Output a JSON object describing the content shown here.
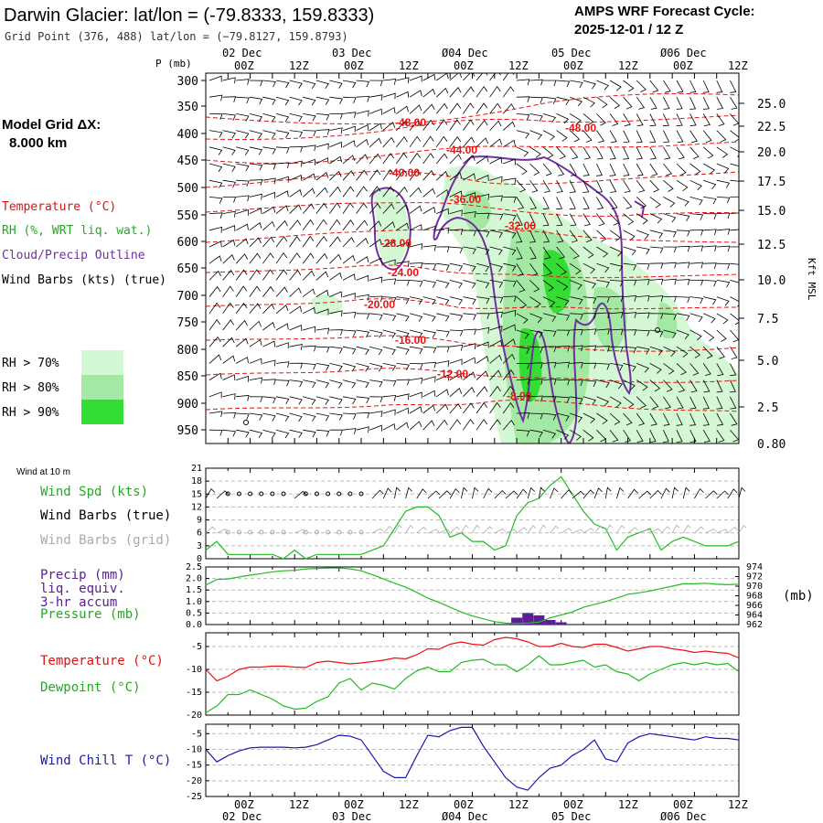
{
  "header": {
    "title": "Darwin Glacier:  lat/lon = (-79.8333, 159.8333)",
    "grid_point": "Grid Point (376, 488) lat/lon = (−79.8127, 159.8793)",
    "forecast_label": "AMPS WRF Forecast Cycle:",
    "forecast_cycle": "2025-12-01 / 12  Z"
  },
  "left_panel": {
    "model_grid_label": "Model Grid ΔX:",
    "model_grid_value": "8.000 km",
    "legend_temperature": "Temperature (°C)",
    "legend_rh": "RH (%, WRT liq. wat.)",
    "legend_cloud": "Cloud/Precip Outline",
    "legend_wind": "Wind Barbs (kts) (true)",
    "rh_levels": [
      "RH > 70%",
      "RH > 80%",
      "RH > 90%"
    ]
  },
  "colors": {
    "temperature": "#ee1111",
    "rh70": "#d4f7d4",
    "rh80": "#a3e8a3",
    "rh90": "#33dd33",
    "cloud": "#7030a0",
    "line_green": "#22bb22",
    "wind_chill": "#1a1aaa",
    "precip": "#5a2090",
    "gray_barb": "#aaaaaa"
  },
  "time_axis": {
    "top_day_labels": [
      "02 Dec",
      "03 Dec",
      "Ø04 Dec",
      "05 Dec",
      "Ø06 Dec"
    ],
    "bottom_day_labels": [
      "02 Dec",
      "03 Dec",
      "Ø04 Dec",
      "05 Dec",
      "Ø06 Dec"
    ],
    "hour_labels": [
      "00Z",
      "12Z",
      "00Z",
      "12Z",
      "00Z",
      "12Z",
      "00Z",
      "12Z",
      "00Z",
      "12Z"
    ]
  },
  "cross_section": {
    "p_label": "P (mb)",
    "pressure_ticks": [
      "300",
      "350",
      "400",
      "450",
      "500",
      "550",
      "600",
      "650",
      "700",
      "750",
      "800",
      "850",
      "900",
      "950"
    ],
    "height_ticks": [
      "25.0",
      "22.5",
      "20.0",
      "17.5",
      "15.0",
      "12.5",
      "10.0",
      "7.5",
      "5.0",
      "2.5",
      "0.80"
    ],
    "height_axis_label": "Kft MSL",
    "isotherm_labels": [
      "-48.00",
      "-48.00",
      "-44.00",
      "-40.00",
      "-36.00",
      "-32.00",
      "-28.00",
      "-24.00",
      "-20.00",
      "-16.00",
      "-12.00",
      "-8.00"
    ]
  },
  "panels": {
    "wind_at_10m": "Wind at 10 m",
    "wind_spd": "Wind Spd (kts)",
    "wind_barbs_true": "Wind Barbs (true)",
    "wind_barbs_grid": "Wind Barbs (grid)",
    "precip_1": "Precip (mm)",
    "precip_2": "liq. equiv.",
    "precip_3": "3-hr accum",
    "pressure": "Pressure (mb)",
    "pressure_unit": "(mb)",
    "temperature": "Temperature (°C)",
    "dewpoint": "Dewpoint (°C)",
    "wind_chill": "Wind Chill T (°C)"
  },
  "chart_data": [
    {
      "type": "line",
      "panel": "wind",
      "x_hours": [
        0,
        3,
        6,
        9,
        12,
        15,
        18,
        21,
        24,
        27,
        30,
        33,
        36,
        39,
        42,
        45,
        48,
        51,
        54,
        57,
        60,
        63,
        66,
        69,
        72,
        75,
        78,
        81,
        84,
        87,
        90,
        93,
        96,
        99,
        102,
        105,
        108,
        111,
        114,
        117,
        120,
        123,
        126,
        129,
        132,
        135,
        138,
        141,
        144
      ],
      "series": [
        {
          "name": "Wind Spd (kts)",
          "values": [
            2,
            4,
            1,
            1,
            1,
            1,
            1,
            0,
            2,
            0,
            1,
            1,
            1,
            1,
            1,
            2,
            3,
            7,
            11,
            12,
            12,
            10,
            5,
            6,
            4,
            4,
            2,
            3,
            10,
            13,
            14,
            17,
            19,
            15,
            11,
            8,
            7,
            2,
            5,
            6,
            7,
            2,
            4,
            5,
            4,
            3,
            3,
            3,
            4
          ]
        }
      ],
      "ylim": [
        0,
        21
      ],
      "yticks": [
        "0",
        "3",
        "6",
        "9",
        "12",
        "15",
        "18",
        "21"
      ]
    },
    {
      "type": "line",
      "panel": "precip_pressure",
      "x_hours": [
        0,
        3,
        6,
        9,
        12,
        15,
        18,
        21,
        24,
        27,
        30,
        33,
        36,
        39,
        42,
        45,
        48,
        51,
        54,
        57,
        60,
        63,
        66,
        69,
        72,
        75,
        78,
        81,
        84,
        87,
        90,
        93,
        96,
        99,
        102,
        105,
        108,
        111,
        114,
        117,
        120,
        123,
        126,
        129,
        132,
        135,
        138,
        141,
        144
      ],
      "series": [
        {
          "name": "Pressure (mb)",
          "values": [
            970.2,
            971.4,
            971.5,
            971.9,
            972.3,
            972.6,
            973.0,
            973.2,
            973.3,
            973.6,
            973.7,
            973.8,
            973.8,
            973.6,
            973.2,
            972.4,
            971.5,
            970.6,
            969.8,
            968.7,
            967.5,
            966.6,
            965.6,
            964.6,
            963.8,
            963.2,
            962.6,
            962.3,
            962.2,
            962.3,
            962.5,
            963.4,
            964.0,
            964.6,
            965.6,
            966.2,
            966.8,
            967.5,
            968.3,
            968.6,
            969.0,
            969.5,
            970.0,
            970.5,
            970.5,
            970.6,
            970.4,
            970.3,
            970.4
          ]
        },
        {
          "name": "Precip (mm) liq. equiv. 3-hr accum",
          "values": [
            0,
            0,
            0,
            0,
            0,
            0,
            0,
            0,
            0,
            0,
            0,
            0,
            0,
            0,
            0,
            0,
            0,
            0,
            0,
            0,
            0,
            0,
            0,
            0,
            0,
            0,
            0,
            0,
            0.3,
            0.5,
            0.4,
            0.2,
            0.1,
            0,
            0,
            0,
            0,
            0,
            0,
            0,
            0,
            0,
            0,
            0,
            0,
            0,
            0,
            0,
            0
          ]
        }
      ],
      "ylim_precip": [
        0,
        2.5
      ],
      "ylim_pressure": [
        962,
        974
      ],
      "yticks_left": [
        "0.0",
        "0.5",
        "1.0",
        "1.5",
        "2.0",
        "2.5"
      ],
      "yticks_right": [
        "962",
        "964",
        "966",
        "968",
        "970",
        "972",
        "974"
      ]
    },
    {
      "type": "line",
      "panel": "temperature",
      "x_hours": [
        0,
        3,
        6,
        9,
        12,
        15,
        18,
        21,
        24,
        27,
        30,
        33,
        36,
        39,
        42,
        45,
        48,
        51,
        54,
        57,
        60,
        63,
        66,
        69,
        72,
        75,
        78,
        81,
        84,
        87,
        90,
        93,
        96,
        99,
        102,
        105,
        108,
        111,
        114,
        117,
        120,
        123,
        126,
        129,
        132,
        135,
        138,
        141,
        144
      ],
      "series": [
        {
          "name": "Temperature (°C)",
          "values": [
            -10,
            -12.5,
            -11.5,
            -10,
            -9.5,
            -9.5,
            -9.3,
            -9.3,
            -9.5,
            -9.6,
            -8.5,
            -8.2,
            -8.5,
            -8.8,
            -8.6,
            -8.3,
            -8,
            -7.5,
            -7.7,
            -6.8,
            -5.5,
            -5.6,
            -4.5,
            -4,
            -4.5,
            -4.7,
            -3.5,
            -3,
            -3.3,
            -4,
            -5,
            -5,
            -4.3,
            -5,
            -5.2,
            -4.5,
            -4.5,
            -5.2,
            -6,
            -5.5,
            -5,
            -5,
            -5.5,
            -5.8,
            -6.3,
            -6,
            -6.3,
            -6.5,
            -7.5
          ]
        },
        {
          "name": "Dewpoint (°C)",
          "values": [
            -19.5,
            -18,
            -15.5,
            -15.5,
            -14.5,
            -15.5,
            -16.5,
            -18,
            -18.7,
            -18.5,
            -17,
            -16,
            -13,
            -12,
            -14.5,
            -13,
            -13.5,
            -14.3,
            -12,
            -10.3,
            -9.5,
            -10.5,
            -10.5,
            -8.5,
            -8,
            -7.8,
            -9,
            -9,
            -10.5,
            -9,
            -7,
            -9,
            -9,
            -8.5,
            -8,
            -9.5,
            -9,
            -10.5,
            -11,
            -12.5,
            -11,
            -10,
            -9,
            -8.5,
            -9,
            -8.5,
            -9,
            -8.7,
            -10.5
          ]
        }
      ],
      "ylim": [
        -20,
        -2
      ],
      "yticks": [
        "-20",
        "-15",
        "-10",
        "-5"
      ]
    },
    {
      "type": "line",
      "panel": "wind_chill",
      "x_hours": [
        0,
        3,
        6,
        9,
        12,
        15,
        18,
        21,
        24,
        27,
        30,
        33,
        36,
        39,
        42,
        45,
        48,
        51,
        54,
        57,
        60,
        63,
        66,
        69,
        72,
        75,
        78,
        81,
        84,
        87,
        90,
        93,
        96,
        99,
        102,
        105,
        108,
        111,
        114,
        117,
        120,
        123,
        126,
        129,
        132,
        135,
        138,
        141,
        144
      ],
      "series": [
        {
          "name": "Wind Chill T (°C)",
          "values": [
            -10,
            -14,
            -12,
            -10.5,
            -9.5,
            -9.3,
            -9.3,
            -9.3,
            -9.5,
            -9.3,
            -8.5,
            -7,
            -5.5,
            -5.8,
            -7,
            -12,
            -17,
            -19,
            -19,
            -12,
            -5.5,
            -6,
            -4,
            -3,
            -3,
            -9,
            -14,
            -19,
            -22,
            -23,
            -19,
            -16,
            -15,
            -12,
            -10,
            -7,
            -13,
            -14,
            -8,
            -6,
            -5,
            -5.5,
            -6,
            -6.5,
            -7,
            -6,
            -6.5,
            -6.5,
            -7
          ]
        }
      ],
      "ylim": [
        -25,
        -2
      ],
      "yticks": [
        "-25",
        "-20",
        "-15",
        "-10",
        "-5"
      ]
    }
  ]
}
